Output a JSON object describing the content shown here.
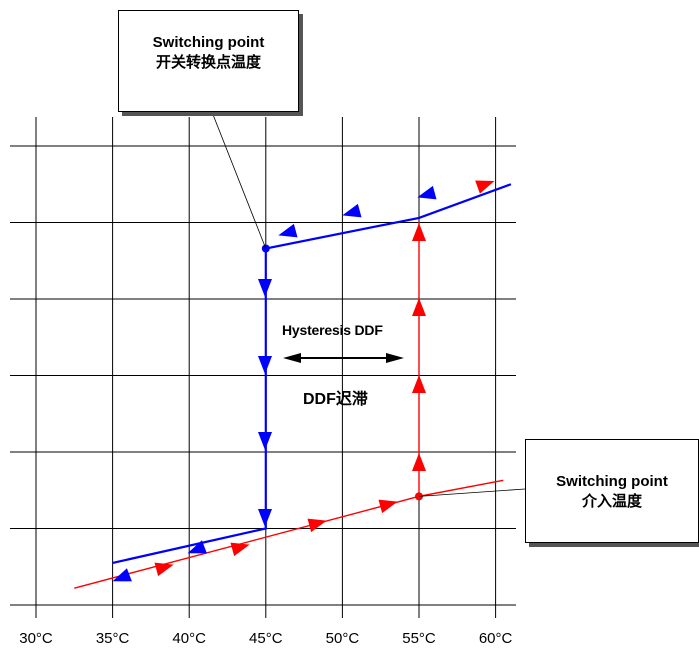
{
  "chart_data": {
    "type": "line",
    "x_ticks": [
      "30°C",
      "35°C",
      "40°C",
      "45°C",
      "50°C",
      "55°C",
      "60°C"
    ],
    "xlim": [
      30,
      60
    ],
    "grid": true,
    "series": [
      {
        "color": "#ff0000",
        "points": [
          [
            32.5,
            0.22
          ],
          [
            55,
            1.42
          ],
          [
            60.5,
            1.63
          ],
          [
            55,
            1.42
          ],
          [
            55,
            5.02
          ]
        ]
      },
      {
        "color": "#0000ff",
        "points": [
          [
            61,
            5.5
          ],
          [
            55,
            5.06
          ],
          [
            45,
            4.66
          ],
          [
            45,
            1.0
          ],
          [
            35,
            0.55
          ]
        ]
      }
    ]
  },
  "annotations": {
    "top_callout": {
      "line1": "Switching point",
      "line2": "开关转换点温度"
    },
    "right_callout": {
      "line1": "Switching point",
      "line2": "介入温度"
    },
    "hysteresis_en": "Hysteresis DDF",
    "hysteresis_cn": "DDF迟滞"
  },
  "colors": {
    "heating": "#ff0000",
    "cooling": "#0000ff",
    "grid": "#000000"
  }
}
